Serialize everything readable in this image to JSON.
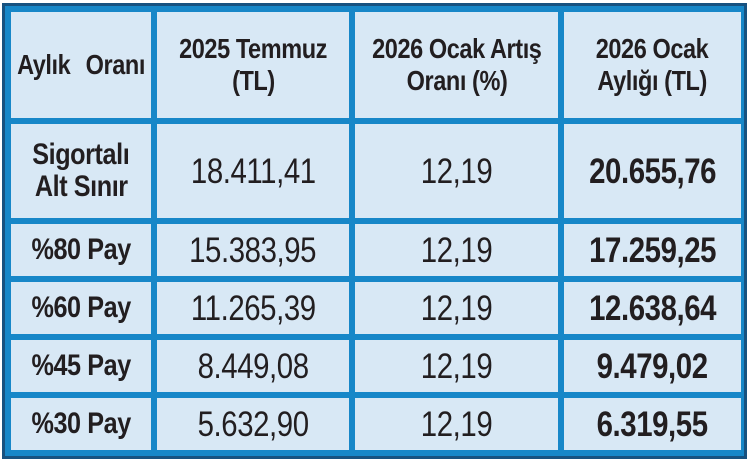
{
  "colors": {
    "grid_blue": "#1787c8",
    "frame_navy": "#175280",
    "cell_bg": "#d8e8f5",
    "text": "#221e20",
    "page_bg": "#ffffff"
  },
  "table": {
    "headers": [
      {
        "lines": [
          "Aylık",
          "Oranı"
        ]
      },
      {
        "lines": [
          "2025 Temmuz",
          "(TL)"
        ]
      },
      {
        "lines": [
          "2026 Ocak Artış",
          "Oranı (%)"
        ]
      },
      {
        "lines": [
          "2026 Ocak",
          "Aylığı (TL)"
        ]
      }
    ],
    "rows": [
      {
        "label_lines": [
          "Sigortalı",
          "Alt Sınır"
        ],
        "jul2025": "18.411,41",
        "increase_pct": "12,19",
        "jan2026": "20.655,76"
      },
      {
        "label_lines": [
          "%80 Pay"
        ],
        "jul2025": "15.383,95",
        "increase_pct": "12,19",
        "jan2026": "17.259,25"
      },
      {
        "label_lines": [
          "%60 Pay"
        ],
        "jul2025": "11.265,39",
        "increase_pct": "12,19",
        "jan2026": "12.638,64"
      },
      {
        "label_lines": [
          "%45 Pay"
        ],
        "jul2025": "8.449,08",
        "increase_pct": "12,19",
        "jan2026": "9.479,02"
      },
      {
        "label_lines": [
          "%30 Pay"
        ],
        "jul2025": "5.632,90",
        "increase_pct": "12,19",
        "jan2026": "6.319,55"
      }
    ]
  },
  "chart_data": {
    "type": "table",
    "columns": [
      "Aylık Oranı",
      "2025 Temmuz (TL)",
      "2026 Ocak Artış Oranı (%)",
      "2026 Ocak Aylığı (TL)"
    ],
    "rows": [
      [
        "Sigortalı Alt Sınır",
        "18.411,41",
        "12,19",
        "20.655,76"
      ],
      [
        "%80 Pay",
        "15.383,95",
        "12,19",
        "17.259,25"
      ],
      [
        "%60 Pay",
        "11.265,39",
        "12,19",
        "12.638,64"
      ],
      [
        "%45 Pay",
        "8.449,08",
        "12,19",
        "9.479,02"
      ],
      [
        "%30 Pay",
        "5.632,90",
        "12,19",
        "6.319,55"
      ]
    ]
  }
}
